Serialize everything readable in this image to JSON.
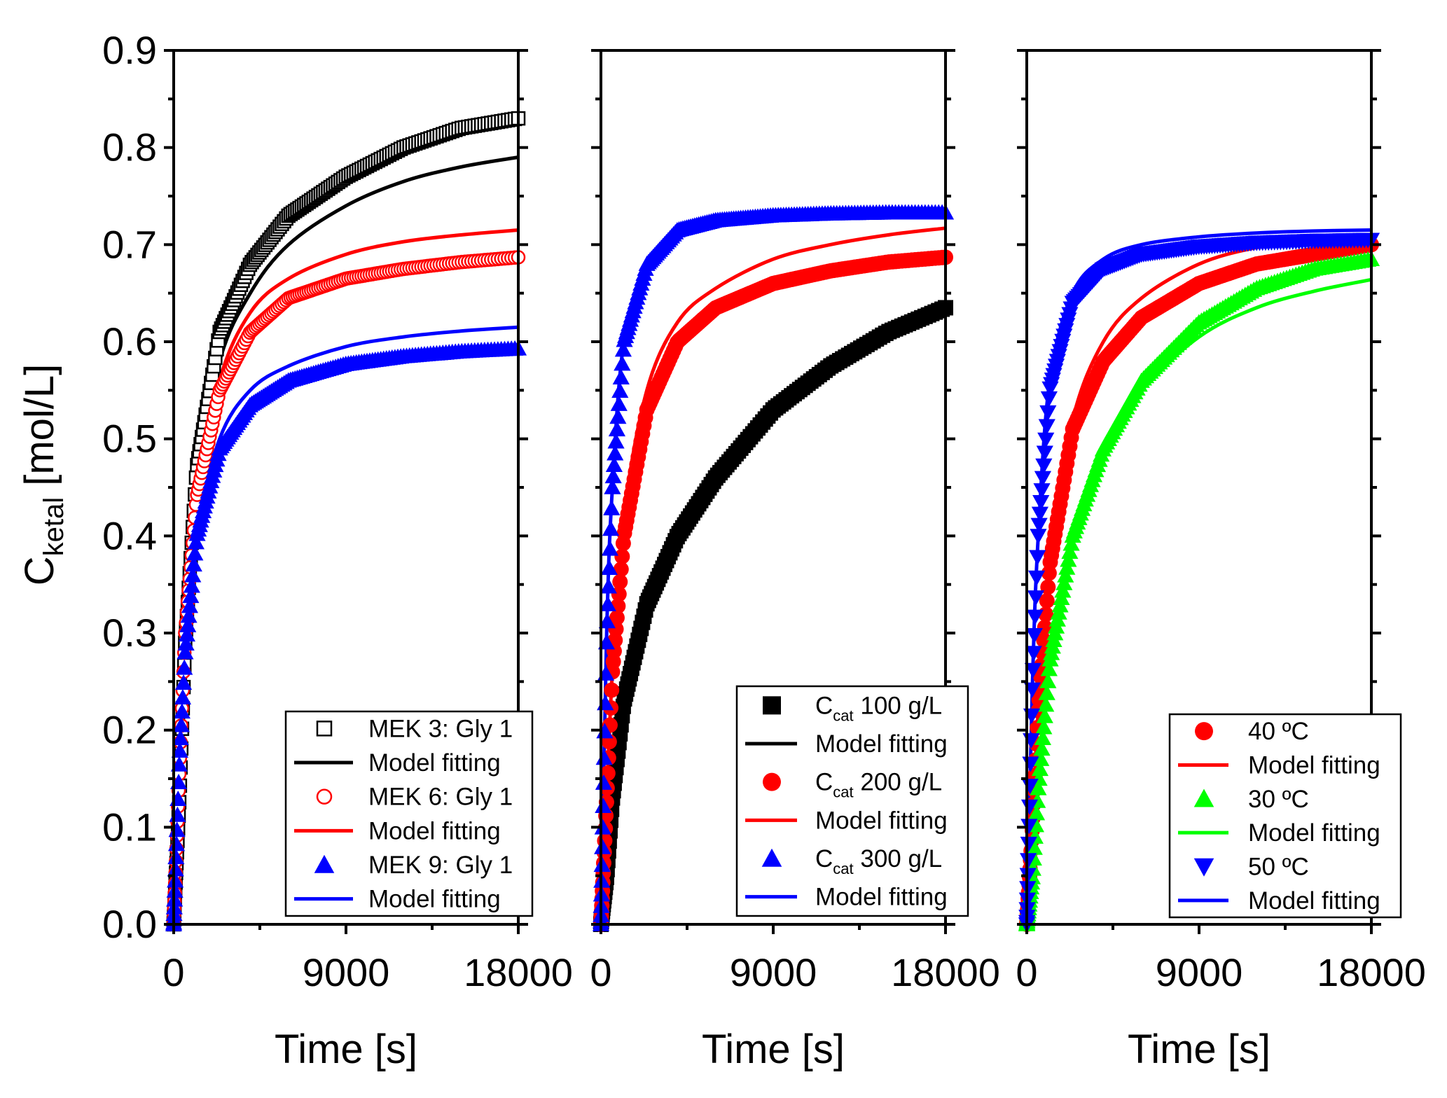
{
  "chart_data": {
    "type": "scatter",
    "ylabel": "C",
    "ylabel_subscript": "ketal",
    "ylabel_unit": " [mol/L]",
    "ylim": [
      0,
      0.9
    ],
    "yticks": [
      "0.0",
      "0.1",
      "0.2",
      "0.3",
      "0.4",
      "0.5",
      "0.6",
      "0.7",
      "0.8",
      "0.9"
    ],
    "panels": [
      {
        "name": "molar-ratio",
        "xlabel": "Time [s]",
        "xlim": [
          0,
          18000
        ],
        "xticks": [
          "0",
          "9000",
          "18000"
        ],
        "series": [
          {
            "name": "MEK 3: Gly 1",
            "kind": "data",
            "marker": "open-square",
            "color": "#000000",
            "x": [
              0,
              300,
              600,
              1200,
              2400,
              4000,
              6000,
              9000,
              12000,
              15000,
              18000
            ],
            "y": [
              0,
              0.13,
              0.29,
              0.47,
              0.61,
              0.68,
              0.73,
              0.77,
              0.8,
              0.82,
              0.83
            ]
          },
          {
            "name": "Model fitting",
            "kind": "fit",
            "color": "#000000",
            "x": [
              0,
              300,
              600,
              1200,
              2400,
              4000,
              6000,
              9000,
              12000,
              15000,
              18000
            ],
            "y": [
              0,
              0.11,
              0.25,
              0.45,
              0.58,
              0.65,
              0.7,
              0.74,
              0.765,
              0.78,
              0.79
            ]
          },
          {
            "name": "MEK 6: Gly 1",
            "kind": "data",
            "marker": "open-circle",
            "color": "#ff0000",
            "x": [
              0,
              300,
              600,
              1200,
              2400,
              4000,
              6000,
              9000,
              12000,
              15000,
              18000
            ],
            "y": [
              0,
              0.16,
              0.3,
              0.44,
              0.55,
              0.61,
              0.645,
              0.665,
              0.675,
              0.682,
              0.687
            ]
          },
          {
            "name": "Model fitting",
            "kind": "fit",
            "color": "#ff0000",
            "x": [
              0,
              300,
              600,
              1200,
              2400,
              4000,
              6000,
              9000,
              12000,
              15000,
              18000
            ],
            "y": [
              0,
              0.14,
              0.28,
              0.43,
              0.56,
              0.63,
              0.665,
              0.69,
              0.703,
              0.71,
              0.715
            ]
          },
          {
            "name": "MEK 9: Gly 1",
            "kind": "data",
            "marker": "filled-triangle",
            "color": "#0000ff",
            "x": [
              0,
              300,
              600,
              1200,
              2400,
              4000,
              6000,
              9000,
              12000,
              15000,
              18000
            ],
            "y": [
              0,
              0.17,
              0.28,
              0.4,
              0.49,
              0.535,
              0.56,
              0.577,
              0.585,
              0.59,
              0.593
            ]
          },
          {
            "name": "Model fitting",
            "kind": "fit",
            "color": "#0000ff",
            "x": [
              0,
              300,
              600,
              1200,
              2400,
              4000,
              6000,
              9000,
              12000,
              15000,
              18000
            ],
            "y": [
              0,
              0.15,
              0.26,
              0.4,
              0.5,
              0.55,
              0.575,
              0.595,
              0.605,
              0.611,
              0.615
            ]
          }
        ]
      },
      {
        "name": "catalyst-loading",
        "xlabel": "Time [s]",
        "xlim": [
          0,
          18000
        ],
        "xticks": [
          "0",
          "9000",
          "18000"
        ],
        "series": [
          {
            "name": "C",
            "name_subscript": "cat",
            "name_suffix": " 100 g/L",
            "kind": "data",
            "marker": "filled-square",
            "color": "#000000",
            "x": [
              0,
              300,
              600,
              1200,
              2400,
              4000,
              6000,
              9000,
              12000,
              15000,
              18000
            ],
            "y": [
              0,
              0.05,
              0.13,
              0.23,
              0.33,
              0.4,
              0.46,
              0.53,
              0.575,
              0.61,
              0.635
            ]
          },
          {
            "name": "Model fitting",
            "kind": "fit",
            "color": "#000000",
            "x": [
              0,
              300,
              600,
              1200,
              2400,
              4000,
              6000,
              9000,
              12000,
              15000,
              18000
            ],
            "y": [
              0,
              0.05,
              0.13,
              0.23,
              0.33,
              0.4,
              0.46,
              0.53,
              0.575,
              0.61,
              0.635
            ]
          },
          {
            "name": "C",
            "name_subscript": "cat",
            "name_suffix": " 200 g/L",
            "kind": "data",
            "marker": "filled-circle",
            "color": "#ff0000",
            "x": [
              0,
              300,
              600,
              1200,
              2400,
              4000,
              6000,
              9000,
              12000,
              15000,
              18000
            ],
            "y": [
              0,
              0.13,
              0.26,
              0.4,
              0.53,
              0.6,
              0.635,
              0.66,
              0.673,
              0.682,
              0.687
            ]
          },
          {
            "name": "Model fitting",
            "kind": "fit",
            "color": "#ff0000",
            "x": [
              0,
              300,
              600,
              1200,
              2400,
              4000,
              6000,
              9000,
              12000,
              15000,
              18000
            ],
            "y": [
              0,
              0.13,
              0.26,
              0.42,
              0.55,
              0.62,
              0.655,
              0.685,
              0.7,
              0.71,
              0.717
            ]
          },
          {
            "name": "C",
            "name_subscript": "cat",
            "name_suffix": " 300 g/L",
            "kind": "data",
            "marker": "filled-triangle",
            "color": "#0000ff",
            "x": [
              0,
              300,
              600,
              1200,
              2400,
              4000,
              6000,
              9000,
              12000,
              15000,
              18000
            ],
            "y": [
              0,
              0.3,
              0.45,
              0.6,
              0.68,
              0.715,
              0.725,
              0.73,
              0.732,
              0.733,
              0.733
            ]
          },
          {
            "name": "Model fitting",
            "kind": "fit",
            "color": "#0000ff",
            "x": [
              0,
              300,
              600,
              1200,
              2400,
              4000,
              6000,
              9000,
              12000,
              15000,
              18000
            ],
            "y": [
              0,
              0.3,
              0.45,
              0.6,
              0.68,
              0.71,
              0.722,
              0.728,
              0.73,
              0.731,
              0.731
            ]
          }
        ]
      },
      {
        "name": "temperature",
        "xlabel": "Time [s]",
        "xlim": [
          0,
          18000
        ],
        "xticks": [
          "0",
          "9000",
          "18000"
        ],
        "series": [
          {
            "name": "40 ºC",
            "kind": "data",
            "marker": "filled-circle",
            "color": "#ff0000",
            "x": [
              0,
              300,
              600,
              1200,
              2400,
              4000,
              6000,
              9000,
              12000,
              15000,
              18000
            ],
            "y": [
              0,
              0.1,
              0.22,
              0.37,
              0.51,
              0.58,
              0.625,
              0.66,
              0.68,
              0.69,
              0.7
            ]
          },
          {
            "name": "Model fitting",
            "kind": "fit",
            "color": "#ff0000",
            "x": [
              0,
              300,
              600,
              1200,
              2400,
              4000,
              6000,
              9000,
              12000,
              15000,
              18000
            ],
            "y": [
              0,
              0.1,
              0.22,
              0.38,
              0.52,
              0.6,
              0.645,
              0.68,
              0.697,
              0.705,
              0.71
            ]
          },
          {
            "name": "30 ºC",
            "kind": "data",
            "marker": "filled-triangle",
            "color": "#00ff00",
            "x": [
              0,
              300,
              600,
              1200,
              2400,
              4000,
              6000,
              9000,
              12000,
              15000,
              18000
            ],
            "y": [
              0,
              0.05,
              0.14,
              0.27,
              0.4,
              0.49,
              0.56,
              0.62,
              0.655,
              0.675,
              0.685
            ]
          },
          {
            "name": "Model fitting",
            "kind": "fit",
            "color": "#00ff00",
            "x": [
              0,
              300,
              600,
              1200,
              2400,
              4000,
              6000,
              9000,
              12000,
              15000,
              18000
            ],
            "y": [
              0,
              0.05,
              0.14,
              0.27,
              0.4,
              0.49,
              0.55,
              0.605,
              0.635,
              0.652,
              0.664
            ]
          },
          {
            "name": "50 ºC",
            "kind": "data",
            "marker": "filled-down-triangle",
            "color": "#0000ff",
            "x": [
              0,
              300,
              600,
              1200,
              2400,
              4000,
              6000,
              9000,
              12000,
              15000,
              18000
            ],
            "y": [
              0,
              0.25,
              0.4,
              0.55,
              0.64,
              0.675,
              0.69,
              0.698,
              0.702,
              0.704,
              0.705
            ]
          },
          {
            "name": "Model fitting",
            "kind": "fit",
            "color": "#0000ff",
            "x": [
              0,
              300,
              600,
              1200,
              2400,
              4000,
              6000,
              9000,
              12000,
              15000,
              18000
            ],
            "y": [
              0,
              0.25,
              0.4,
              0.56,
              0.65,
              0.685,
              0.7,
              0.708,
              0.712,
              0.714,
              0.715
            ]
          }
        ]
      }
    ]
  }
}
